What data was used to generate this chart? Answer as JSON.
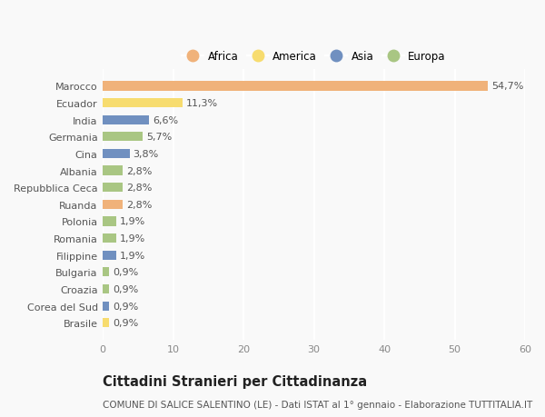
{
  "countries": [
    "Marocco",
    "Ecuador",
    "India",
    "Germania",
    "Cina",
    "Albania",
    "Repubblica Ceca",
    "Ruanda",
    "Polonia",
    "Romania",
    "Filippine",
    "Bulgaria",
    "Croazia",
    "Corea del Sud",
    "Brasile"
  ],
  "values": [
    54.7,
    11.3,
    6.6,
    5.7,
    3.8,
    2.8,
    2.8,
    2.8,
    1.9,
    1.9,
    1.9,
    0.9,
    0.9,
    0.9,
    0.9
  ],
  "labels": [
    "54,7%",
    "11,3%",
    "6,6%",
    "5,7%",
    "3,8%",
    "2,8%",
    "2,8%",
    "2,8%",
    "1,9%",
    "1,9%",
    "1,9%",
    "0,9%",
    "0,9%",
    "0,9%",
    "0,9%"
  ],
  "continents": [
    "Africa",
    "America",
    "Asia",
    "Europa",
    "Asia",
    "Europa",
    "Europa",
    "Africa",
    "Europa",
    "Europa",
    "Asia",
    "Europa",
    "Europa",
    "Asia",
    "America"
  ],
  "continent_colors": {
    "Africa": "#F0B27A",
    "America": "#F7DC6F",
    "Asia": "#7090C0",
    "Europa": "#A9C683"
  },
  "legend_order": [
    "Africa",
    "America",
    "Asia",
    "Europa"
  ],
  "xlim": [
    0,
    60
  ],
  "xticks": [
    0,
    10,
    20,
    30,
    40,
    50,
    60
  ],
  "title": "Cittadini Stranieri per Cittadinanza",
  "subtitle": "COMUNE DI SALICE SALENTINO (LE) - Dati ISTAT al 1° gennaio - Elaborazione TUTTITALIA.IT",
  "background_color": "#f9f9f9",
  "bar_height": 0.55,
  "label_fontsize": 8,
  "tick_fontsize": 8,
  "title_fontsize": 10.5,
  "subtitle_fontsize": 7.5
}
